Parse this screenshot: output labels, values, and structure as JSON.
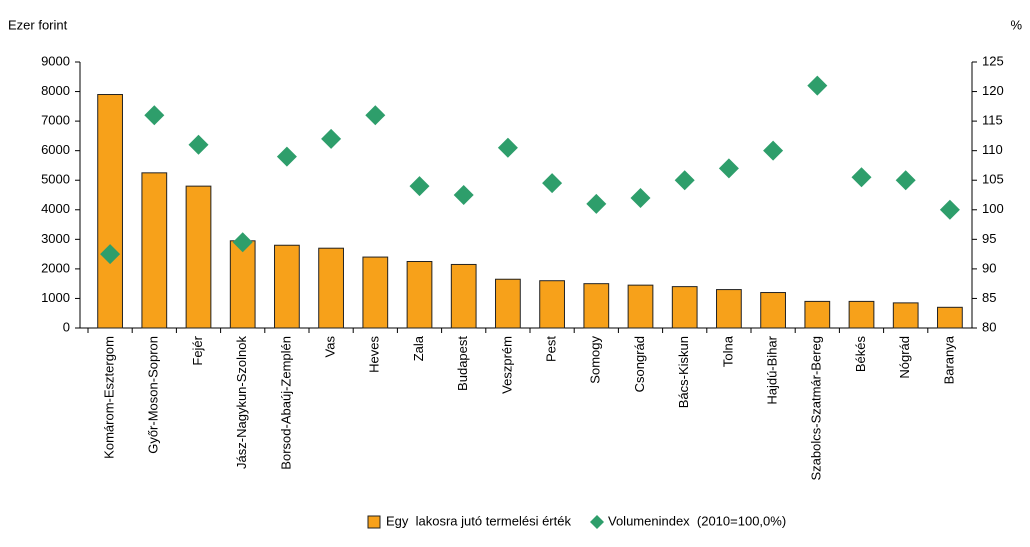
{
  "chart_data": {
    "type": "bar",
    "y_axis_label": "Ezer forint",
    "y2_axis_label": "%",
    "categories": [
      "Komárom-Esztergom",
      "Győr-Moson-Sopron",
      "Fejér",
      "Jász-Nagykun-Szolnok",
      "Borsod-Abaúj-Zemplén",
      "Vas",
      "Heves",
      "Zala",
      "Budapest",
      "Veszprém",
      "Pest",
      "Somogy",
      "Csongrád",
      "Bács-Kiskun",
      "Tolna",
      "Hajdú-Bihar",
      "Szabolcs-Szatmár-Bereg",
      "Békés",
      "Nógrád",
      "Baranya"
    ],
    "series": [
      {
        "name": "Egy  lakosra jutó termelési érték",
        "type": "bar",
        "color": "#f7a11a",
        "values": [
          7900,
          5250,
          4800,
          2950,
          2800,
          2700,
          2400,
          2250,
          2150,
          1650,
          1600,
          1500,
          1450,
          1400,
          1300,
          1200,
          900,
          900,
          850,
          700
        ]
      },
      {
        "name": "Volumenindex  (2010=100,0%)",
        "type": "scatter",
        "axis": "y2",
        "color": "#2e9e6b",
        "values": [
          92.5,
          116,
          111,
          94.5,
          109,
          112,
          116,
          104,
          102.5,
          110.5,
          104.5,
          101,
          102,
          105,
          107,
          110,
          121,
          105.5,
          105,
          100
        ]
      }
    ],
    "ylim": [
      0,
      9000
    ],
    "yticks": [
      0,
      1000,
      2000,
      3000,
      4000,
      5000,
      6000,
      7000,
      8000,
      9000
    ],
    "y2lim": [
      80,
      125
    ],
    "y2ticks": [
      80,
      85,
      90,
      95,
      100,
      105,
      110,
      115,
      120,
      125
    ],
    "grid": false
  }
}
